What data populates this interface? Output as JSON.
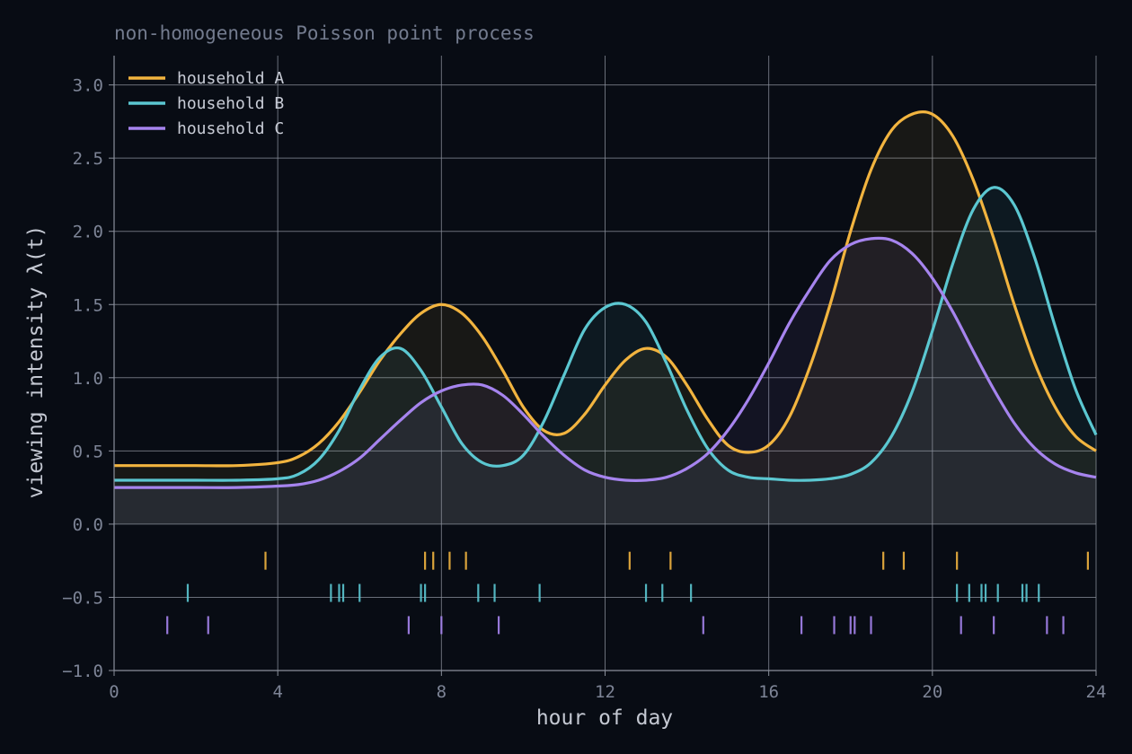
{
  "chart_data": {
    "type": "line",
    "title": "non-homogeneous Poisson point process",
    "xlabel": "hour of day",
    "ylabel": "viewing intensity  λ(t)",
    "xlim": [
      0,
      24
    ],
    "ylim": [
      -1.0,
      3.2
    ],
    "xticks": [
      0,
      4,
      8,
      12,
      16,
      20,
      24
    ],
    "xtick_labels": [
      "0",
      "4",
      "8",
      "12",
      "16",
      "20",
      "24"
    ],
    "yticks": [
      -1.0,
      -0.5,
      0.0,
      0.5,
      1.0,
      1.5,
      2.0,
      2.5,
      3.0
    ],
    "ytick_labels": [
      "−1.0",
      "−0.5",
      "0.0",
      "0.5",
      "1.0",
      "1.5",
      "2.0",
      "2.5",
      "3.0"
    ],
    "grid": true,
    "legend_position": "top-left",
    "x": [
      0,
      1,
      2,
      3,
      4,
      4.5,
      5,
      5.5,
      6,
      6.5,
      7,
      7.5,
      8,
      8.5,
      9,
      9.5,
      10,
      10.5,
      11,
      11.5,
      12,
      12.5,
      13,
      13.5,
      14,
      14.5,
      15,
      15.5,
      16,
      16.5,
      17,
      17.5,
      18,
      18.5,
      19,
      19.5,
      20,
      20.5,
      21,
      21.5,
      22,
      22.5,
      23,
      23.5,
      24
    ],
    "series": [
      {
        "name": "household A",
        "color": "#f2b43f",
        "values": [
          0.4,
          0.4,
          0.4,
          0.4,
          0.42,
          0.46,
          0.55,
          0.7,
          0.9,
          1.12,
          1.3,
          1.44,
          1.5,
          1.44,
          1.28,
          1.05,
          0.8,
          0.64,
          0.62,
          0.75,
          0.95,
          1.12,
          1.2,
          1.14,
          0.95,
          0.72,
          0.54,
          0.49,
          0.54,
          0.73,
          1.07,
          1.5,
          2.0,
          2.42,
          2.69,
          2.8,
          2.8,
          2.65,
          2.35,
          1.95,
          1.5,
          1.1,
          0.8,
          0.6,
          0.5
        ]
      },
      {
        "name": "household B",
        "color": "#5bc7d1",
        "values": [
          0.3,
          0.3,
          0.3,
          0.3,
          0.31,
          0.34,
          0.44,
          0.64,
          0.92,
          1.14,
          1.2,
          1.05,
          0.8,
          0.55,
          0.42,
          0.4,
          0.47,
          0.7,
          1.02,
          1.33,
          1.48,
          1.5,
          1.38,
          1.1,
          0.78,
          0.52,
          0.37,
          0.32,
          0.31,
          0.3,
          0.3,
          0.31,
          0.34,
          0.42,
          0.6,
          0.9,
          1.32,
          1.78,
          2.15,
          2.3,
          2.18,
          1.82,
          1.35,
          0.92,
          0.61
        ]
      },
      {
        "name": "household C",
        "color": "#a684ee",
        "values": [
          0.25,
          0.25,
          0.25,
          0.25,
          0.26,
          0.27,
          0.3,
          0.36,
          0.45,
          0.58,
          0.71,
          0.83,
          0.91,
          0.95,
          0.95,
          0.88,
          0.75,
          0.6,
          0.47,
          0.37,
          0.32,
          0.3,
          0.3,
          0.32,
          0.38,
          0.48,
          0.64,
          0.85,
          1.1,
          1.37,
          1.6,
          1.8,
          1.91,
          1.95,
          1.94,
          1.85,
          1.68,
          1.45,
          1.18,
          0.92,
          0.69,
          0.52,
          0.41,
          0.35,
          0.32
        ]
      }
    ],
    "events": [
      {
        "series": "household A",
        "y": -0.25,
        "times": [
          3.7,
          7.6,
          7.8,
          8.2,
          8.6,
          12.6,
          13.6,
          18.8,
          19.3,
          20.6,
          23.8
        ]
      },
      {
        "series": "household B",
        "y": -0.47,
        "times": [
          1.8,
          5.3,
          5.5,
          5.6,
          6.0,
          7.5,
          7.6,
          8.9,
          9.3,
          10.4,
          13.0,
          13.4,
          14.1,
          20.6,
          20.9,
          21.2,
          21.3,
          21.6,
          22.2,
          22.3,
          22.6
        ]
      },
      {
        "series": "household C",
        "y": -0.69,
        "times": [
          1.3,
          2.3,
          7.2,
          8.0,
          9.4,
          14.4,
          16.8,
          17.6,
          18.0,
          18.1,
          18.5,
          20.7,
          21.5,
          22.8,
          23.2
        ]
      }
    ]
  }
}
